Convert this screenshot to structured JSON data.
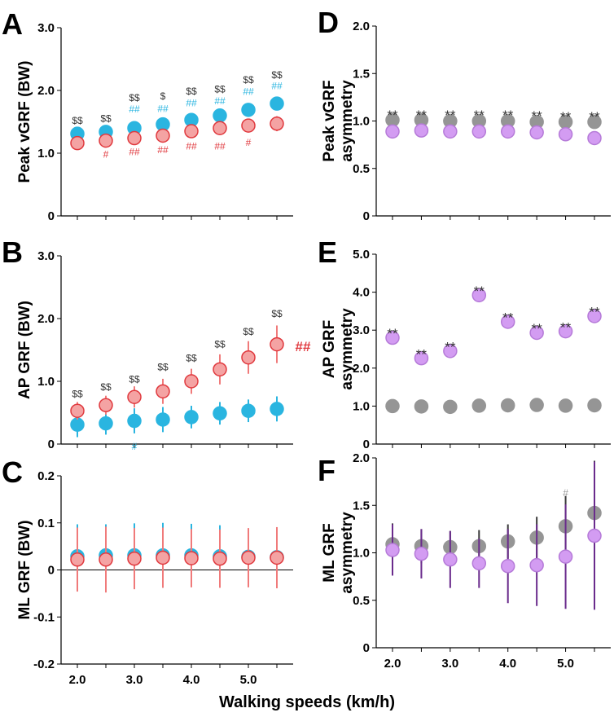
{
  "colors": {
    "blue": "#2ab5e0",
    "red_fill": "#f4a3a3",
    "red_stroke": "#e0393e",
    "red_err": "#f07a7a",
    "gray": "#959595",
    "violet": "#d39cf2",
    "violet_err": "#6a2b8c",
    "dark_err": "#3a3a3a",
    "black_annot": "#333333",
    "gray_annot": "#999999"
  },
  "xlabel": "Walking speeds (km/h)",
  "chart_data": [
    {
      "panel": "A",
      "type": "scatter",
      "ylabel_lines": [
        "Peak vGRF (BW)"
      ],
      "ylim": [
        0,
        3
      ],
      "yticks": [
        "0",
        "1.0",
        "2.0",
        "3.0"
      ],
      "ytick_values": [
        0,
        1,
        2,
        3
      ],
      "xticks": [
        "2.0",
        "3.0",
        "4.0",
        "5.0"
      ],
      "series": [
        {
          "name": "blue",
          "values": [
            1.31,
            1.34,
            1.4,
            1.46,
            1.53,
            1.6,
            1.69,
            1.79
          ],
          "err": [
            0.05,
            0.05,
            0.05,
            0.06,
            0.06,
            0.07,
            0.08,
            0.09
          ]
        },
        {
          "name": "red",
          "values": [
            1.16,
            1.2,
            1.24,
            1.28,
            1.35,
            1.4,
            1.44,
            1.47
          ],
          "err": [
            0.05,
            0.08,
            0.08,
            0.09,
            0.09,
            0.1,
            0.11,
            0.12
          ]
        }
      ],
      "annotations": [
        {
          "i": 0,
          "text": "$$",
          "color": "black_annot",
          "y": 1.52,
          "size": "small"
        },
        {
          "i": 1,
          "text": "$$",
          "color": "black_annot",
          "y": 1.55,
          "size": "small"
        },
        {
          "i": 2,
          "text": "$$",
          "color": "black_annot",
          "y": 1.88,
          "size": "small"
        },
        {
          "i": 2,
          "text": "##",
          "color": "blue",
          "y": 1.7,
          "size": "small"
        },
        {
          "i": 2,
          "text": "##",
          "color": "red_stroke",
          "y": 1.02,
          "size": "small"
        },
        {
          "i": 3,
          "text": "$",
          "color": "black_annot",
          "y": 1.91,
          "size": "small"
        },
        {
          "i": 3,
          "text": "##",
          "color": "blue",
          "y": 1.71,
          "size": "small"
        },
        {
          "i": 3,
          "text": "##",
          "color": "red_stroke",
          "y": 1.05,
          "size": "small"
        },
        {
          "i": 1,
          "text": "#",
          "color": "red_stroke",
          "y": 0.98,
          "size": "small"
        },
        {
          "i": 4,
          "text": "$$",
          "color": "black_annot",
          "y": 1.99,
          "size": "small"
        },
        {
          "i": 4,
          "text": "##",
          "color": "blue",
          "y": 1.8,
          "size": "small"
        },
        {
          "i": 4,
          "text": "##",
          "color": "red_stroke",
          "y": 1.11,
          "size": "small"
        },
        {
          "i": 5,
          "text": "$$",
          "color": "black_annot",
          "y": 2.02,
          "size": "small"
        },
        {
          "i": 5,
          "text": "##",
          "color": "blue",
          "y": 1.83,
          "size": "small"
        },
        {
          "i": 5,
          "text": "##",
          "color": "red_stroke",
          "y": 1.11,
          "size": "small"
        },
        {
          "i": 6,
          "text": "$$",
          "color": "black_annot",
          "y": 2.17,
          "size": "small"
        },
        {
          "i": 6,
          "text": "##",
          "color": "blue",
          "y": 1.98,
          "size": "small"
        },
        {
          "i": 6,
          "text": "#",
          "color": "red_stroke",
          "y": 1.17,
          "size": "small"
        },
        {
          "i": 7,
          "text": "$$",
          "color": "black_annot",
          "y": 2.25,
          "size": "small"
        },
        {
          "i": 7,
          "text": "##",
          "color": "blue",
          "y": 2.07,
          "size": "small"
        }
      ]
    },
    {
      "panel": "B",
      "type": "scatter",
      "ylabel_lines": [
        "AP GRF (BW)"
      ],
      "ylim": [
        0,
        3
      ],
      "yticks": [
        "0",
        "1.0",
        "2.0",
        "3.0"
      ],
      "ytick_values": [
        0,
        1,
        2,
        3
      ],
      "xticks": [
        "2.0",
        "3.0",
        "4.0",
        "5.0"
      ],
      "series": [
        {
          "name": "blue",
          "values": [
            0.31,
            0.33,
            0.37,
            0.39,
            0.43,
            0.49,
            0.53,
            0.56
          ],
          "err": [
            0.2,
            0.18,
            0.2,
            0.2,
            0.18,
            0.18,
            0.18,
            0.2
          ]
        },
        {
          "name": "red",
          "values": [
            0.53,
            0.62,
            0.75,
            0.84,
            1.0,
            1.19,
            1.38,
            1.59
          ],
          "err": [
            0.14,
            0.15,
            0.17,
            0.2,
            0.2,
            0.24,
            0.26,
            0.3
          ]
        }
      ],
      "annotations": [
        {
          "i": 0,
          "text": "$$",
          "color": "black_annot",
          "y": 0.8,
          "size": "small"
        },
        {
          "i": 1,
          "text": "$$",
          "color": "black_annot",
          "y": 0.91,
          "size": "small"
        },
        {
          "i": 2,
          "text": "$$",
          "color": "black_annot",
          "y": 1.03,
          "size": "small"
        },
        {
          "i": 2,
          "text": "#",
          "color": "blue",
          "y": -0.04,
          "size": "small"
        },
        {
          "i": 3,
          "text": "$$",
          "color": "black_annot",
          "y": 1.23,
          "size": "small"
        },
        {
          "i": 4,
          "text": "$$",
          "color": "black_annot",
          "y": 1.37,
          "size": "small"
        },
        {
          "i": 5,
          "text": "$$",
          "color": "black_annot",
          "y": 1.59,
          "size": "small"
        },
        {
          "i": 6,
          "text": "$$",
          "color": "black_annot",
          "y": 1.79,
          "size": "small"
        },
        {
          "i": 7,
          "text": "$$",
          "color": "black_annot",
          "y": 2.08,
          "size": "small"
        },
        {
          "i": 7,
          "text": "##",
          "color": "red_stroke",
          "y": 1.53,
          "size": "big",
          "dx": 32
        }
      ]
    },
    {
      "panel": "C",
      "type": "scatter",
      "ylabel_lines": [
        "ML GRF (BW)"
      ],
      "ylim": [
        -0.2,
        0.2
      ],
      "yticks": [
        "-0.2",
        "-0.1",
        "0",
        "0.1",
        "0.2"
      ],
      "ytick_values": [
        -0.2,
        -0.1,
        0,
        0.1,
        0.2
      ],
      "xticks": [
        "2.0",
        "3.0",
        "4.0",
        "5.0"
      ],
      "series": [
        {
          "name": "blue",
          "values": [
            0.029,
            0.031,
            0.031,
            0.031,
            0.031,
            0.029,
            0.028,
            0.027
          ],
          "err": [
            0.068,
            0.066,
            0.068,
            0.069,
            0.067,
            0.066,
            0.06,
            0.06
          ]
        },
        {
          "name": "red",
          "values": [
            0.022,
            0.022,
            0.024,
            0.026,
            0.025,
            0.024,
            0.026,
            0.026
          ],
          "err": [
            0.068,
            0.07,
            0.065,
            0.064,
            0.062,
            0.062,
            0.063,
            0.065
          ]
        }
      ],
      "annotations": []
    },
    {
      "panel": "D",
      "type": "scatter",
      "ylabel_lines": [
        "Peak vGRF",
        "asymmetry"
      ],
      "ylim": [
        0,
        2
      ],
      "yticks": [
        "0",
        "0.5",
        "1.0",
        "1.5",
        "2.0"
      ],
      "ytick_values": [
        0,
        0.5,
        1,
        1.5,
        2
      ],
      "xticks": [
        "2.0",
        "3.0",
        "4.0",
        "5.0"
      ],
      "series": [
        {
          "name": "gray",
          "values": [
            1.01,
            1.01,
            1.0,
            1.0,
            1.0,
            0.99,
            0.99,
            0.99
          ],
          "err": [
            0.02,
            0.02,
            0.02,
            0.02,
            0.02,
            0.02,
            0.02,
            0.02
          ]
        },
        {
          "name": "violet",
          "values": [
            0.89,
            0.9,
            0.89,
            0.89,
            0.89,
            0.88,
            0.86,
            0.82
          ],
          "err": [
            0.04,
            0.04,
            0.04,
            0.04,
            0.05,
            0.05,
            0.06,
            0.07
          ]
        }
      ],
      "annotations": [
        {
          "i": 0,
          "text": "**",
          "color": "black_annot",
          "y": 1.1,
          "size": "star"
        },
        {
          "i": 1,
          "text": "**",
          "color": "black_annot",
          "y": 1.1,
          "size": "star"
        },
        {
          "i": 2,
          "text": "**",
          "color": "black_annot",
          "y": 1.1,
          "size": "star"
        },
        {
          "i": 3,
          "text": "**",
          "color": "black_annot",
          "y": 1.1,
          "size": "star"
        },
        {
          "i": 4,
          "text": "**",
          "color": "black_annot",
          "y": 1.1,
          "size": "star"
        },
        {
          "i": 5,
          "text": "**",
          "color": "black_annot",
          "y": 1.09,
          "size": "star"
        },
        {
          "i": 6,
          "text": "**",
          "color": "black_annot",
          "y": 1.08,
          "size": "star"
        },
        {
          "i": 7,
          "text": "**",
          "color": "black_annot",
          "y": 1.08,
          "size": "star"
        }
      ]
    },
    {
      "panel": "E",
      "type": "scatter",
      "ylabel_lines": [
        "AP GRF",
        "asymmetry"
      ],
      "ylim": [
        0,
        5
      ],
      "yticks": [
        "0",
        "1.0",
        "2.0",
        "3.0",
        "4.0",
        "5.0"
      ],
      "ytick_values": [
        0,
        1,
        2,
        3,
        4,
        5
      ],
      "xticks": [
        "2.0",
        "3.0",
        "4.0",
        "5.0"
      ],
      "series": [
        {
          "name": "gray",
          "values": [
            1.0,
            0.99,
            0.98,
            1.01,
            1.02,
            1.03,
            1.01,
            1.02
          ],
          "err": [
            0.02,
            0.02,
            0.02,
            0.02,
            0.02,
            0.02,
            0.02,
            0.02
          ]
        },
        {
          "name": "violet",
          "values": [
            2.8,
            2.26,
            2.45,
            3.92,
            3.22,
            2.93,
            2.97,
            3.37
          ],
          "err": [
            0.05,
            0.05,
            0.05,
            0.05,
            0.05,
            0.05,
            0.05,
            0.05
          ]
        }
      ],
      "annotations": [
        {
          "i": 0,
          "text": "**",
          "color": "black_annot",
          "y": 3.0,
          "size": "star"
        },
        {
          "i": 1,
          "text": "**",
          "color": "black_annot",
          "y": 2.46,
          "size": "star"
        },
        {
          "i": 2,
          "text": "**",
          "color": "black_annot",
          "y": 2.65,
          "size": "star"
        },
        {
          "i": 3,
          "text": "**",
          "color": "black_annot",
          "y": 4.12,
          "size": "star"
        },
        {
          "i": 4,
          "text": "**",
          "color": "black_annot",
          "y": 3.42,
          "size": "star"
        },
        {
          "i": 5,
          "text": "**",
          "color": "black_annot",
          "y": 3.13,
          "size": "star"
        },
        {
          "i": 6,
          "text": "**",
          "color": "black_annot",
          "y": 3.17,
          "size": "star"
        },
        {
          "i": 7,
          "text": "**",
          "color": "black_annot",
          "y": 3.57,
          "size": "star"
        }
      ]
    },
    {
      "panel": "F",
      "type": "scatter",
      "ylabel_lines": [
        "ML GRF",
        "asymmetry"
      ],
      "ylim": [
        0,
        2
      ],
      "yticks": [
        "0",
        "0.5",
        "1.0",
        "1.5",
        "2.0"
      ],
      "ytick_values": [
        0,
        0.5,
        1,
        1.5,
        2
      ],
      "xticks": [
        "2.0",
        "3.0",
        "4.0",
        "5.0"
      ],
      "series": [
        {
          "name": "gray",
          "values": [
            1.09,
            1.07,
            1.06,
            1.07,
            1.12,
            1.16,
            1.28,
            1.42
          ],
          "err": [
            0.22,
            0.18,
            0.17,
            0.17,
            0.18,
            0.22,
            0.32,
            0.55
          ]
        },
        {
          "name": "violet",
          "values": [
            1.03,
            0.99,
            0.93,
            0.89,
            0.86,
            0.87,
            0.96,
            1.18
          ],
          "err": [
            0.27,
            0.26,
            0.3,
            0.26,
            0.39,
            0.43,
            0.55,
            0.78
          ]
        }
      ],
      "annotations": [
        {
          "i": 6,
          "text": "#",
          "color": "gray_annot",
          "y": 1.63,
          "size": "small"
        }
      ]
    }
  ]
}
